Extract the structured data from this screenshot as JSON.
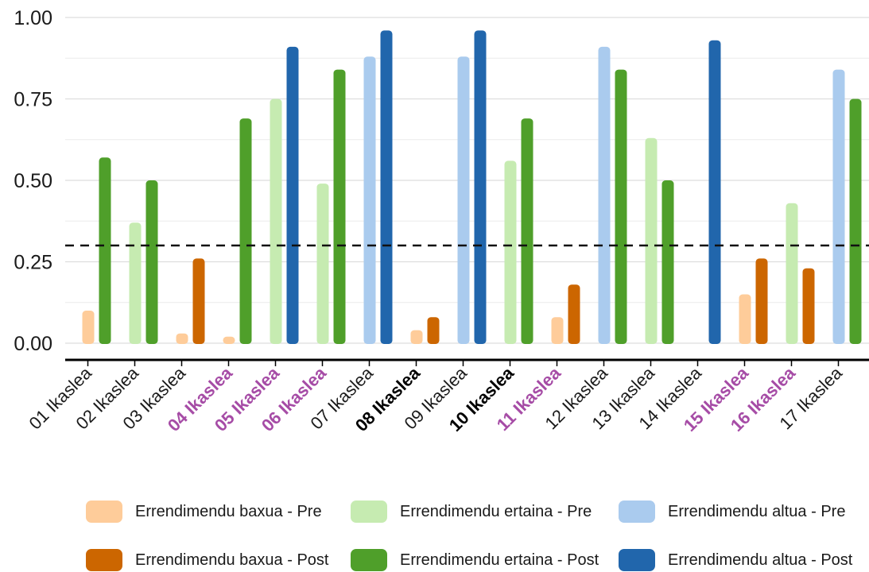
{
  "chart_data": {
    "type": "bar",
    "title": "",
    "xlabel": "",
    "ylabel": "",
    "ylim": [
      -0.05,
      1.0
    ],
    "yticks": [
      "0.00",
      "0.25",
      "0.50",
      "0.75",
      "1.00"
    ],
    "threshold": 0.3,
    "grid": true,
    "legend_position": "bottom",
    "categories": [
      {
        "label": "01 Ikaslea",
        "style": "normal"
      },
      {
        "label": "02 Ikaslea",
        "style": "normal"
      },
      {
        "label": "03 Ikaslea",
        "style": "normal"
      },
      {
        "label": "04 Ikaslea",
        "style": "purple-bold"
      },
      {
        "label": "05 Ikaslea",
        "style": "purple-bold"
      },
      {
        "label": "06 Ikaslea",
        "style": "purple-bold"
      },
      {
        "label": "07 Ikaslea",
        "style": "normal"
      },
      {
        "label": "08 Ikaslea",
        "style": "bold"
      },
      {
        "label": "09 Ikaslea",
        "style": "normal"
      },
      {
        "label": "10 Ikaslea",
        "style": "bold"
      },
      {
        "label": "11 Ikaslea",
        "style": "purple-bold"
      },
      {
        "label": "12 Ikaslea",
        "style": "normal"
      },
      {
        "label": "13 Ikaslea",
        "style": "normal"
      },
      {
        "label": "14 Ikaslea",
        "style": "normal"
      },
      {
        "label": "15 Ikaslea",
        "style": "purple-bold"
      },
      {
        "label": "16 Ikaslea",
        "style": "purple-bold"
      },
      {
        "label": "17 Ikaslea",
        "style": "normal"
      }
    ],
    "bars": [
      {
        "pre": {
          "value": 0.1,
          "group": "baxua"
        },
        "post": {
          "value": 0.57,
          "group": "ertaina"
        }
      },
      {
        "pre": {
          "value": 0.37,
          "group": "ertaina"
        },
        "post": {
          "value": 0.5,
          "group": "ertaina"
        }
      },
      {
        "pre": {
          "value": 0.03,
          "group": "baxua"
        },
        "post": {
          "value": 0.26,
          "group": "baxua"
        }
      },
      {
        "pre": {
          "value": 0.02,
          "group": "baxua"
        },
        "post": {
          "value": 0.69,
          "group": "ertaina"
        }
      },
      {
        "pre": {
          "value": 0.75,
          "group": "ertaina"
        },
        "post": {
          "value": 0.91,
          "group": "altua"
        }
      },
      {
        "pre": {
          "value": 0.49,
          "group": "ertaina"
        },
        "post": {
          "value": 0.84,
          "group": "ertaina"
        }
      },
      {
        "pre": {
          "value": 0.88,
          "group": "altua"
        },
        "post": {
          "value": 0.96,
          "group": "altua"
        }
      },
      {
        "pre": {
          "value": 0.04,
          "group": "baxua"
        },
        "post": {
          "value": 0.08,
          "group": "baxua"
        }
      },
      {
        "pre": {
          "value": 0.88,
          "group": "altua"
        },
        "post": {
          "value": 0.96,
          "group": "altua"
        }
      },
      {
        "pre": {
          "value": 0.56,
          "group": "ertaina"
        },
        "post": {
          "value": 0.69,
          "group": "ertaina"
        }
      },
      {
        "pre": {
          "value": 0.08,
          "group": "baxua"
        },
        "post": {
          "value": 0.18,
          "group": "baxua"
        }
      },
      {
        "pre": {
          "value": 0.91,
          "group": "altua"
        },
        "post": {
          "value": 0.84,
          "group": "ertaina"
        }
      },
      {
        "pre": {
          "value": 0.63,
          "group": "ertaina"
        },
        "post": {
          "value": 0.5,
          "group": "ertaina"
        }
      },
      {
        "pre": null,
        "post": {
          "value": 0.93,
          "group": "altua"
        }
      },
      {
        "pre": {
          "value": 0.15,
          "group": "baxua"
        },
        "post": {
          "value": 0.26,
          "group": "baxua"
        }
      },
      {
        "pre": {
          "value": 0.43,
          "group": "ertaina"
        },
        "post": {
          "value": 0.23,
          "group": "baxua"
        }
      },
      {
        "pre": {
          "value": 0.84,
          "group": "altua"
        },
        "post": {
          "value": 0.75,
          "group": "ertaina"
        }
      }
    ],
    "legend": [
      {
        "key": "baxua-pre",
        "label": "Errendimendu baxua - Pre",
        "color": "#FECC9A"
      },
      {
        "key": "ertaina-pre",
        "label": "Errendimendu ertaina - Pre",
        "color": "#C6EBB1"
      },
      {
        "key": "altua-pre",
        "label": "Errendimendu altua - Pre",
        "color": "#AACBEE"
      },
      {
        "key": "baxua-post",
        "label": "Errendimendu baxua - Post",
        "color": "#CC6600"
      },
      {
        "key": "ertaina-post",
        "label": "Errendimendu ertaina - Post",
        "color": "#4F9F2A"
      },
      {
        "key": "altua-post",
        "label": "Errendimendu altua - Post",
        "color": "#2166AC"
      }
    ],
    "label_colors": {
      "normal": "#1a1a1a",
      "bold": "#000000",
      "purple-bold": "#A64CA6"
    }
  }
}
